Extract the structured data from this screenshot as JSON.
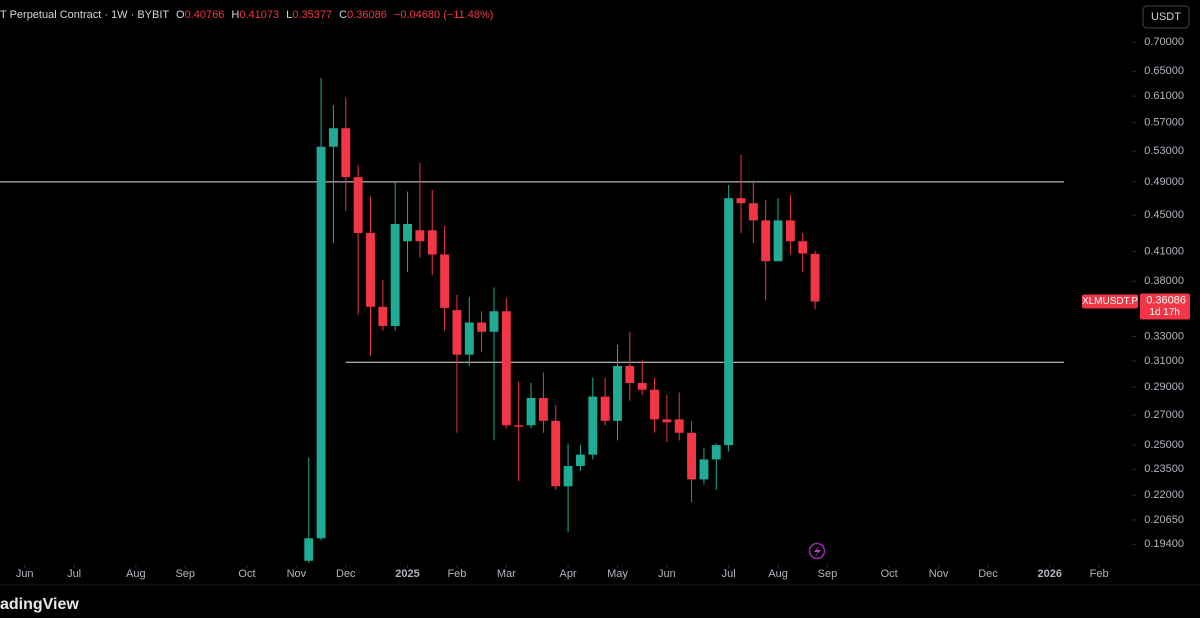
{
  "chart_data": {
    "type": "candlestick",
    "header": {
      "title": "T Perpetual Contract · 1W · BYBIT",
      "o": "O",
      "h": "H",
      "l": "L",
      "c": "C",
      "change": "−0.04680 (−11.48%)"
    },
    "currency": "USDT",
    "symbol": "XLMUSDT.P",
    "countdown": "1d 17h",
    "watermark": "adingView",
    "up_color": "#22ab94",
    "down_color": "#f23645",
    "log_scale": true,
    "x": [
      0,
      1,
      2,
      3,
      4,
      5,
      6,
      7,
      8,
      9,
      10,
      11,
      12,
      13,
      14,
      15,
      16,
      17,
      18,
      19,
      20,
      21,
      22,
      23,
      24,
      25,
      26,
      27,
      28,
      29,
      30,
      31,
      32,
      33,
      34,
      35,
      36,
      37,
      38,
      39,
      40,
      41
    ],
    "open": [
      0.186,
      0.197,
      0.536,
      0.562,
      0.496,
      0.43,
      0.356,
      0.339,
      0.421,
      0.433,
      0.433,
      0.407,
      0.353,
      0.315,
      0.342,
      0.334,
      0.352,
      0.263,
      0.263,
      0.282,
      0.266,
      0.225,
      0.237,
      0.244,
      0.283,
      0.266,
      0.306,
      0.293,
      0.288,
      0.267,
      0.267,
      0.258,
      0.229,
      0.241,
      0.25,
      0.47,
      0.464,
      0.444,
      0.4,
      0.444,
      0.421,
      0.40766
    ],
    "high": [
      0.242,
      0.639,
      0.596,
      0.608,
      0.511,
      0.472,
      0.381,
      0.489,
      0.478,
      0.514,
      0.48,
      0.438,
      0.367,
      0.365,
      0.352,
      0.374,
      0.364,
      0.294,
      0.293,
      0.301,
      0.277,
      0.251,
      0.25,
      0.297,
      0.297,
      0.323,
      0.334,
      0.311,
      0.297,
      0.284,
      0.286,
      0.266,
      0.248,
      0.251,
      0.486,
      0.525,
      0.492,
      0.468,
      0.47,
      0.474,
      0.43,
      0.41073
    ],
    "low": [
      0.185,
      0.196,
      0.419,
      0.455,
      0.349,
      0.314,
      0.335,
      0.335,
      0.389,
      0.404,
      0.386,
      0.335,
      0.258,
      0.306,
      0.317,
      0.253,
      0.261,
      0.228,
      0.261,
      0.258,
      0.223,
      0.2,
      0.234,
      0.241,
      0.263,
      0.253,
      0.28,
      0.284,
      0.258,
      0.252,
      0.253,
      0.216,
      0.226,
      0.223,
      0.246,
      0.43,
      0.419,
      0.362,
      0.4,
      0.407,
      0.389,
      0.35377
    ],
    "close": [
      0.197,
      0.536,
      0.562,
      0.496,
      0.43,
      0.356,
      0.339,
      0.44,
      0.44,
      0.421,
      0.407,
      0.355,
      0.315,
      0.342,
      0.334,
      0.352,
      0.263,
      0.262,
      0.282,
      0.266,
      0.225,
      0.237,
      0.244,
      0.283,
      0.266,
      0.306,
      0.293,
      0.288,
      0.267,
      0.265,
      0.258,
      0.229,
      0.241,
      0.25,
      0.47,
      0.464,
      0.444,
      0.4,
      0.444,
      0.421,
      0.408,
      0.36086
    ],
    "hlines": [
      {
        "value": 0.49,
        "start_x": -25
      },
      {
        "value": 0.309,
        "start_x": 3
      }
    ],
    "xlim": [
      -25,
      66.5
    ],
    "xticks": [
      {
        "value": -23,
        "label": "Jun"
      },
      {
        "value": -19,
        "label": "Jul"
      },
      {
        "value": -14,
        "label": "Aug"
      },
      {
        "value": -10,
        "label": "Sep"
      },
      {
        "value": -5,
        "label": "Oct"
      },
      {
        "value": -1,
        "label": "Nov"
      },
      {
        "value": 3,
        "label": "Dec"
      },
      {
        "value": 8,
        "label": "2025"
      },
      {
        "value": 12,
        "label": "Feb"
      },
      {
        "value": 16,
        "label": "Mar"
      },
      {
        "value": 21,
        "label": "Apr"
      },
      {
        "value": 25,
        "label": "May"
      },
      {
        "value": 29,
        "label": "Jun"
      },
      {
        "value": 34,
        "label": "Jul"
      },
      {
        "value": 38,
        "label": "Aug"
      },
      {
        "value": 42,
        "label": "Sep"
      },
      {
        "value": 47,
        "label": "Oct"
      },
      {
        "value": 51,
        "label": "Nov"
      },
      {
        "value": 55,
        "label": "Dec"
      },
      {
        "value": 60,
        "label": "2026"
      },
      {
        "value": 64,
        "label": "Feb"
      }
    ],
    "ylim": [
      0.184,
      0.78
    ],
    "yticks": [
      {
        "value": 0.7,
        "label": "0.70000"
      },
      {
        "value": 0.65,
        "label": "0.65000"
      },
      {
        "value": 0.61,
        "label": "0.61000"
      },
      {
        "value": 0.57,
        "label": "0.57000"
      },
      {
        "value": 0.53,
        "label": "0.53000"
      },
      {
        "value": 0.49,
        "label": "0.49000"
      },
      {
        "value": 0.45,
        "label": "0.45000"
      },
      {
        "value": 0.41,
        "label": "0.41000"
      },
      {
        "value": 0.38,
        "label": "0.38000"
      },
      {
        "value": 0.33,
        "label": "0.33000"
      },
      {
        "value": 0.31,
        "label": "0.31000"
      },
      {
        "value": 0.29,
        "label": "0.29000"
      },
      {
        "value": 0.27,
        "label": "0.27000"
      },
      {
        "value": 0.25,
        "label": "0.25000"
      },
      {
        "value": 0.235,
        "label": "0.23500"
      },
      {
        "value": 0.22,
        "label": "0.22000"
      },
      {
        "value": 0.2065,
        "label": "0.20650"
      },
      {
        "value": 0.194,
        "label": "0.19400"
      }
    ]
  }
}
